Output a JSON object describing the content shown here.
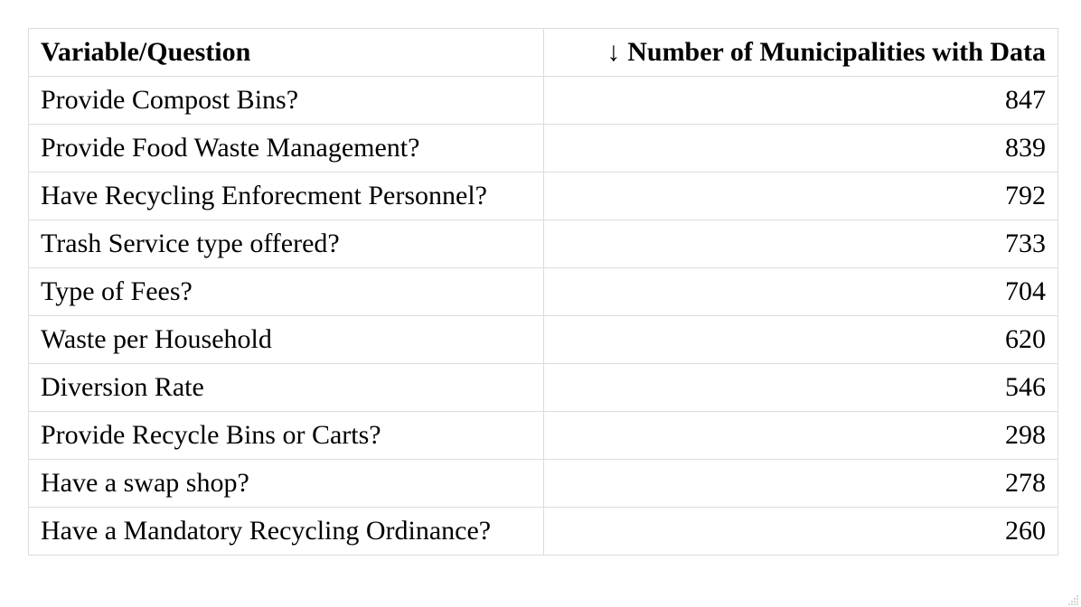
{
  "chart_data": {
    "type": "table",
    "columns": [
      {
        "label": "Variable/Question",
        "sorted": false
      },
      {
        "label": "Number of Municipalities with Data",
        "sorted": "descending",
        "sort_icon": "arrow-down-icon",
        "sort_glyph": "↓"
      }
    ],
    "rows": [
      {
        "variable": "Provide Compost Bins?",
        "count": "847"
      },
      {
        "variable": "Provide Food Waste Management?",
        "count": "839"
      },
      {
        "variable": "Have Recycling Enforecment Personnel?",
        "count": "792"
      },
      {
        "variable": "Trash Service type offered?",
        "count": "733"
      },
      {
        "variable": "Type of Fees?",
        "count": "704"
      },
      {
        "variable": "Waste per Household",
        "count": "620"
      },
      {
        "variable": "Diversion Rate",
        "count": "546"
      },
      {
        "variable": "Provide Recycle Bins or Carts?",
        "count": "298"
      },
      {
        "variable": "Have a swap shop?",
        "count": "278"
      },
      {
        "variable": "Have a Mandatory Recycling Ordinance?",
        "count": "260"
      }
    ]
  },
  "colors": {
    "border": "#dcdcdc",
    "text": "#000000",
    "background": "#ffffff"
  }
}
